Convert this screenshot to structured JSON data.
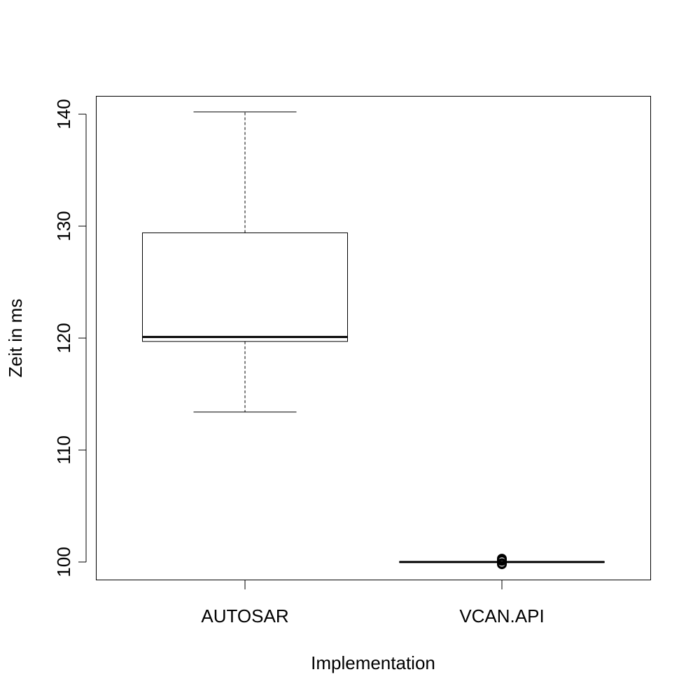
{
  "chart_data": {
    "type": "box",
    "xlabel": "Implementation",
    "ylabel": "Zeit in ms",
    "ylim": [
      98.4,
      141.6
    ],
    "yticks": [
      100,
      110,
      120,
      130,
      140
    ],
    "ytick_labels": [
      "100",
      "110",
      "120",
      "130",
      "140"
    ],
    "grid": false,
    "categories": [
      "AUTOSAR",
      "VCAN.API"
    ],
    "boxes": [
      {
        "category": "AUTOSAR",
        "whisker_low": 113.4,
        "q1": 119.7,
        "median": 120.1,
        "q3": 129.4,
        "whisker_high": 140.2,
        "outliers": []
      },
      {
        "category": "VCAN.API",
        "whisker_low": 100.0,
        "q1": 100.0,
        "median": 100.0,
        "q3": 100.0,
        "whisker_high": 100.0,
        "outliers": [
          100.3,
          100.2,
          100.1,
          99.9,
          99.8
        ]
      }
    ]
  }
}
